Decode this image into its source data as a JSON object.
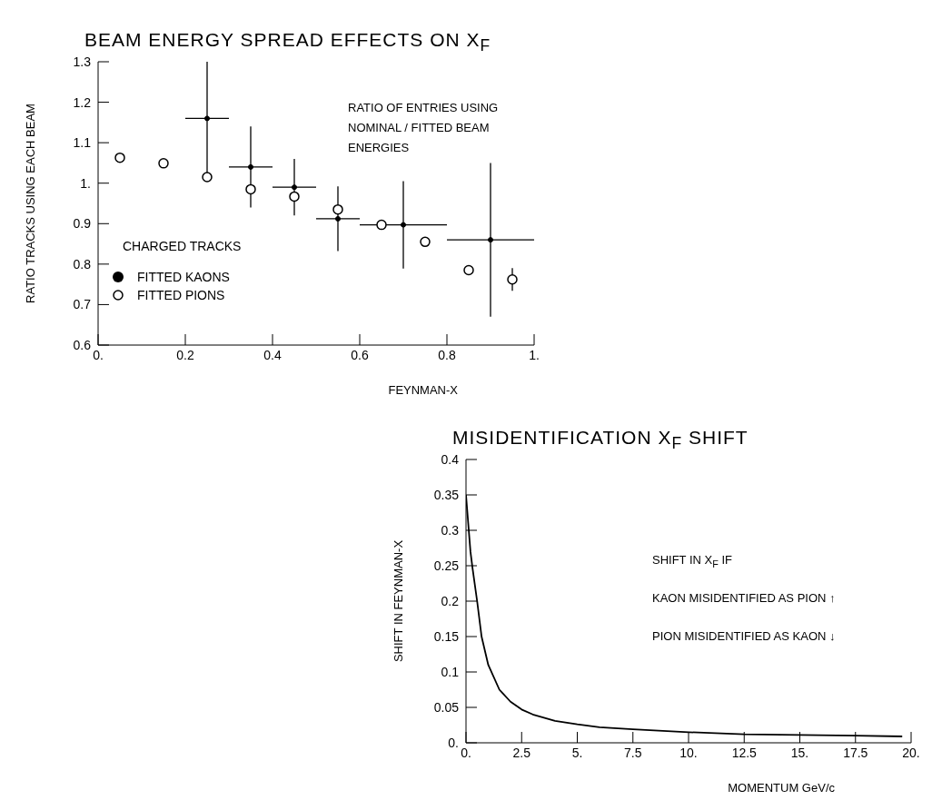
{
  "chart_data": [
    {
      "type": "scatter",
      "title": "BEAM ENERGY SPREAD EFFECTS ON X$_{F}$",
      "xlabel": "FEYNMAN-X",
      "ylabel": "RATIO TRACKS USING EACH BEAM",
      "legend_title": "CHARGED TRACKS",
      "legend": "left",
      "annotations": [
        "RATIO OF ENTRIES USING NOMINAL / FITTED BEAM ENERGIES"
      ],
      "xlim": [
        0,
        1
      ],
      "xticks": [
        {
          "value": 0,
          "label": "0."
        },
        0.2,
        0.4,
        0.6,
        0.8,
        {
          "value": 1,
          "label": "1."
        }
      ],
      "ylim": [
        0.6,
        1.3
      ],
      "yticks": [
        0.6,
        0.7,
        0.8,
        0.9,
        {
          "value": 1,
          "label": "1."
        },
        1.1,
        1.2,
        1.3
      ],
      "series": [
        {
          "name": "FITTED KAONS",
          "color": "#000000",
          "marker": "circle",
          "x": [
            0.25,
            0.35,
            0.45,
            0.55,
            0.7,
            0.9
          ],
          "values": [
            1.16,
            1.04,
            0.99,
            0.912,
            0.897,
            0.86
          ],
          "errors": [
            [
              1.02,
              1.3
            ],
            0.1,
            0.07,
            0.08,
            0.108,
            0.19
          ],
          "xerrors": [
            0.05,
            0.05,
            0.05,
            0.05,
            0.1,
            0.1
          ]
        },
        {
          "name": "FITTED PIONS",
          "color": "#000000",
          "marker": "open circle",
          "x": [
            0.05,
            0.15,
            0.25,
            0.35,
            0.45,
            0.55,
            0.65,
            0.75,
            0.85,
            0.95
          ],
          "values": [
            1.063,
            1.049,
            1.015,
            0.985,
            0.967,
            0.935,
            0.897,
            0.855,
            0.785,
            0.762
          ],
          "errors": [
            null,
            null,
            null,
            null,
            null,
            null,
            null,
            null,
            null,
            0.028
          ]
        }
      ]
    },
    {
      "type": "line",
      "title": "MISIDENTIFICATION X$_{F}$ SHIFT",
      "xlabel": "MOMENTUM GeV/c",
      "ylabel": "SHIFT IN FEYNMAN-X",
      "marker": "none",
      "line_style": "solid",
      "annotations": [
        "SHIFT IN X$_{F}$ IF",
        "KAON MISIDENTIFIED AS PION ↑",
        "PION MISIDENTIFIED AS KAON ↓"
      ],
      "xlim": [
        0,
        20
      ],
      "xticks": [
        {
          "value": 0,
          "label": "0."
        },
        2.5,
        {
          "value": 5,
          "label": "5."
        },
        7.5,
        {
          "value": 10,
          "label": "10."
        },
        12.5,
        {
          "value": 15,
          "label": "15."
        },
        17.5,
        {
          "value": 20,
          "label": "20."
        }
      ],
      "ylim": [
        0,
        0.4
      ],
      "yticks": [
        {
          "value": 0,
          "label": "0."
        },
        0.05,
        0.1,
        0.15,
        0.2,
        0.25,
        0.3,
        0.35,
        0.4
      ],
      "series": [
        {
          "color": "#000000",
          "x": [
            0,
            0.1,
            0.2,
            0.3,
            0.5,
            0.7,
            1,
            1.5,
            2,
            2.5,
            3,
            4,
            5,
            6,
            7.5,
            10,
            12.5,
            15,
            17.5,
            19.6
          ],
          "values": [
            0.35,
            0.31,
            0.27,
            0.245,
            0.2,
            0.15,
            0.11,
            0.075,
            0.058,
            0.047,
            0.04,
            0.031,
            0.026,
            0.022,
            0.019,
            0.015,
            0.012,
            0.011,
            0.01,
            0.009
          ]
        }
      ]
    }
  ]
}
